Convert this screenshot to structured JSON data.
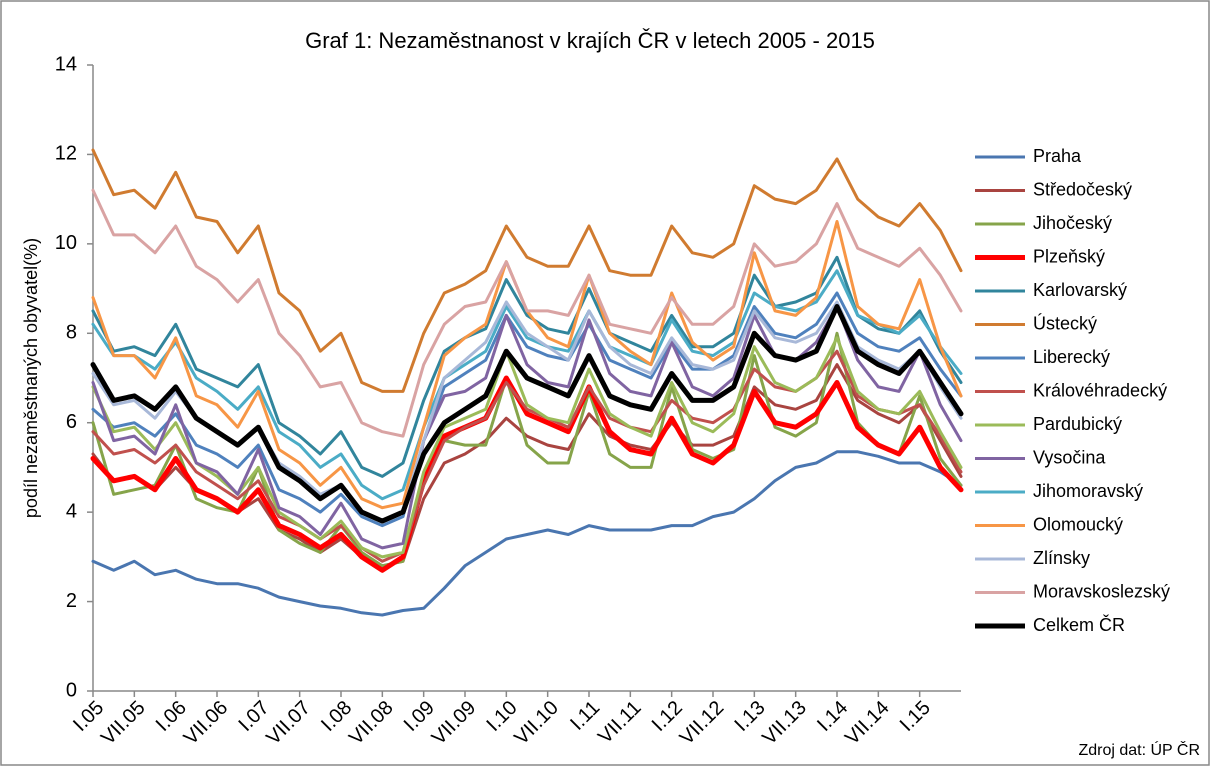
{
  "chart_data": {
    "type": "line",
    "title": "Graf 1: Nezaměstnanost v krajích ČR v letech 2005 - 2015",
    "ylabel": "podíl nezaměstnaných obyvatel(%)",
    "source": "Zdroj dat: ÚP ČR",
    "categories": [
      "I.05",
      null,
      "VII.05",
      null,
      "I.06",
      null,
      "VII.06",
      null,
      "I.07",
      null,
      "VII.07",
      null,
      "I.08",
      null,
      "VII.08",
      null,
      "I.09",
      null,
      "VII.09",
      null,
      "I.10",
      null,
      "VII.10",
      null,
      "I.11",
      null,
      "VII.11",
      null,
      "I.12",
      null,
      "VII.12",
      null,
      "I.13",
      null,
      "VII.13",
      null,
      "I.14",
      null,
      "VII.14",
      null,
      "I.15",
      null,
      null
    ],
    "ylim": [
      0,
      14
    ],
    "yticks": [
      0,
      2,
      4,
      6,
      8,
      10,
      12,
      14
    ],
    "grid": false,
    "series": [
      {
        "name": "Praha",
        "color": "#4a76b0",
        "linewidth": 3,
        "values": [
          2.9,
          2.7,
          2.9,
          2.6,
          2.7,
          2.5,
          2.4,
          2.4,
          2.3,
          2.1,
          2.0,
          1.9,
          1.85,
          1.75,
          1.7,
          1.8,
          1.85,
          2.3,
          2.8,
          3.1,
          3.4,
          3.5,
          3.6,
          3.5,
          3.7,
          3.6,
          3.6,
          3.6,
          3.7,
          3.7,
          3.9,
          4.0,
          4.3,
          4.7,
          5.0,
          5.1,
          5.35,
          5.35,
          5.25,
          5.1,
          5.1,
          4.9,
          4.6
        ]
      },
      {
        "name": "Středočeský",
        "color": "#a94440",
        "linewidth": 3,
        "values": [
          5.3,
          4.7,
          4.8,
          4.5,
          5.0,
          4.5,
          4.3,
          4.0,
          4.3,
          3.6,
          3.4,
          3.1,
          3.4,
          3.0,
          2.8,
          2.9,
          4.3,
          5.1,
          5.3,
          5.6,
          6.1,
          5.7,
          5.5,
          5.4,
          6.2,
          5.7,
          5.5,
          5.4,
          6.0,
          5.5,
          5.5,
          5.7,
          6.8,
          6.4,
          6.3,
          6.5,
          7.3,
          6.5,
          6.2,
          6.0,
          6.4,
          5.6,
          4.8
        ]
      },
      {
        "name": "Jihočeský",
        "color": "#86a44a",
        "linewidth": 3,
        "values": [
          6.0,
          4.4,
          4.5,
          4.6,
          5.5,
          4.3,
          4.1,
          4.0,
          5.0,
          3.6,
          3.3,
          3.1,
          3.7,
          3.1,
          2.8,
          2.9,
          4.8,
          5.6,
          5.5,
          5.5,
          7.0,
          5.5,
          5.1,
          5.1,
          6.7,
          5.3,
          5.0,
          5.0,
          6.8,
          5.4,
          5.2,
          5.4,
          7.5,
          5.9,
          5.7,
          6.0,
          8.0,
          6.0,
          5.5,
          5.3,
          6.6,
          5.2,
          4.6
        ]
      },
      {
        "name": "Plzeňský",
        "color": "#ff0000",
        "linewidth": 5,
        "values": [
          5.2,
          4.7,
          4.8,
          4.5,
          5.2,
          4.5,
          4.3,
          4.0,
          4.5,
          3.7,
          3.5,
          3.2,
          3.5,
          3.0,
          2.7,
          3.0,
          4.7,
          5.7,
          5.9,
          6.1,
          7.0,
          6.2,
          6.0,
          5.8,
          6.8,
          5.8,
          5.4,
          5.3,
          6.1,
          5.3,
          5.1,
          5.5,
          6.7,
          6.0,
          5.9,
          6.2,
          6.9,
          5.9,
          5.5,
          5.3,
          5.9,
          5.0,
          4.5
        ]
      },
      {
        "name": "Karlovarský",
        "color": "#31859c",
        "linewidth": 3,
        "values": [
          8.5,
          7.6,
          7.7,
          7.5,
          8.2,
          7.2,
          7.0,
          6.8,
          7.3,
          6.0,
          5.7,
          5.3,
          5.8,
          5.0,
          4.8,
          5.1,
          6.5,
          7.6,
          7.9,
          8.1,
          9.2,
          8.4,
          8.1,
          8.0,
          9.0,
          8.0,
          7.8,
          7.6,
          8.4,
          7.7,
          7.7,
          8.0,
          9.3,
          8.6,
          8.7,
          8.9,
          9.7,
          8.4,
          8.1,
          8.0,
          8.5,
          7.6,
          6.9
        ]
      },
      {
        "name": "Ústecký",
        "color": "#d07b30",
        "linewidth": 3,
        "values": [
          12.1,
          11.1,
          11.2,
          10.8,
          11.6,
          10.6,
          10.5,
          9.8,
          10.4,
          8.9,
          8.5,
          7.6,
          8.0,
          6.9,
          6.7,
          6.7,
          8.0,
          8.9,
          9.1,
          9.4,
          10.4,
          9.7,
          9.5,
          9.5,
          10.4,
          9.4,
          9.3,
          9.3,
          10.4,
          9.8,
          9.7,
          10.0,
          11.3,
          11.0,
          10.9,
          11.2,
          11.9,
          11.0,
          10.6,
          10.4,
          10.9,
          10.3,
          9.4
        ]
      },
      {
        "name": "Liberecký",
        "color": "#4f81bd",
        "linewidth": 3,
        "values": [
          6.3,
          5.9,
          6.0,
          5.7,
          6.2,
          5.5,
          5.3,
          5.0,
          5.5,
          4.5,
          4.3,
          4.0,
          4.4,
          3.9,
          3.7,
          3.9,
          5.6,
          6.8,
          7.1,
          7.4,
          8.4,
          7.7,
          7.5,
          7.4,
          8.2,
          7.4,
          7.2,
          7.0,
          7.8,
          7.2,
          7.2,
          7.5,
          8.6,
          8.0,
          7.9,
          8.2,
          8.9,
          8.0,
          7.7,
          7.6,
          7.9,
          7.2,
          6.6
        ]
      },
      {
        "name": "Královéhradecký",
        "color": "#c0504d",
        "linewidth": 3,
        "values": [
          5.8,
          5.3,
          5.4,
          5.1,
          5.5,
          4.9,
          4.6,
          4.3,
          4.7,
          3.9,
          3.7,
          3.4,
          3.7,
          3.2,
          2.9,
          3.1,
          4.6,
          5.6,
          5.9,
          6.1,
          6.9,
          6.3,
          6.1,
          5.9,
          6.8,
          6.1,
          5.9,
          5.8,
          6.5,
          6.1,
          6.0,
          6.3,
          7.2,
          6.8,
          6.7,
          7.0,
          7.6,
          6.6,
          6.3,
          6.2,
          6.4,
          5.7,
          4.9
        ]
      },
      {
        "name": "Pardubický",
        "color": "#9bbb59",
        "linewidth": 3,
        "values": [
          6.8,
          5.8,
          5.9,
          5.4,
          6.0,
          5.1,
          4.8,
          4.4,
          5.0,
          4.0,
          3.7,
          3.4,
          3.8,
          3.2,
          3.0,
          3.1,
          4.9,
          5.9,
          6.1,
          6.3,
          7.6,
          6.4,
          6.1,
          6.0,
          7.2,
          6.2,
          5.9,
          5.7,
          6.9,
          6.0,
          5.8,
          6.2,
          7.7,
          6.9,
          6.7,
          7.0,
          7.9,
          6.7,
          6.3,
          6.2,
          6.7,
          5.8,
          5.0
        ]
      },
      {
        "name": "Vysočina",
        "color": "#8064a2",
        "linewidth": 3,
        "values": [
          6.9,
          5.6,
          5.7,
          5.3,
          6.4,
          5.1,
          4.9,
          4.4,
          5.4,
          4.1,
          3.9,
          3.5,
          4.2,
          3.4,
          3.2,
          3.3,
          5.6,
          6.6,
          6.7,
          7.0,
          8.4,
          7.3,
          6.9,
          6.8,
          8.3,
          7.1,
          6.7,
          6.6,
          7.8,
          6.8,
          6.6,
          7.0,
          8.4,
          7.5,
          7.4,
          7.8,
          8.6,
          7.4,
          6.8,
          6.7,
          7.6,
          6.4,
          5.6
        ]
      },
      {
        "name": "Jihomoravský",
        "color": "#4bacc6",
        "linewidth": 3,
        "values": [
          8.2,
          7.5,
          7.5,
          7.2,
          7.8,
          7.0,
          6.7,
          6.3,
          6.8,
          5.8,
          5.5,
          5.0,
          5.3,
          4.6,
          4.3,
          4.5,
          5.9,
          7.0,
          7.3,
          7.6,
          8.6,
          7.9,
          7.7,
          7.6,
          8.5,
          7.7,
          7.5,
          7.3,
          8.3,
          7.6,
          7.5,
          7.8,
          8.9,
          8.6,
          8.5,
          8.7,
          9.4,
          8.4,
          8.2,
          8.0,
          8.4,
          7.7,
          7.1
        ]
      },
      {
        "name": "Olomoucký",
        "color": "#f79646",
        "linewidth": 3,
        "values": [
          8.8,
          7.5,
          7.5,
          7.0,
          7.9,
          6.6,
          6.4,
          5.9,
          6.7,
          5.4,
          5.1,
          4.6,
          5.0,
          4.3,
          4.1,
          4.2,
          5.9,
          7.5,
          7.9,
          8.2,
          9.6,
          8.5,
          7.9,
          7.7,
          9.3,
          8.0,
          7.6,
          7.3,
          8.9,
          7.8,
          7.4,
          7.7,
          9.8,
          8.5,
          8.4,
          8.8,
          10.5,
          8.6,
          8.2,
          8.1,
          9.2,
          7.7,
          6.6
        ]
      },
      {
        "name": "Zlínsky",
        "color": "#a8b8d8",
        "linewidth": 3,
        "values": [
          7.1,
          6.4,
          6.5,
          6.1,
          6.7,
          6.1,
          5.8,
          5.5,
          5.9,
          5.1,
          4.8,
          4.4,
          4.6,
          4.0,
          3.8,
          4.0,
          5.6,
          7.0,
          7.4,
          7.8,
          8.7,
          8.0,
          7.7,
          7.4,
          8.5,
          7.7,
          7.3,
          7.1,
          7.9,
          7.3,
          7.2,
          7.4,
          8.5,
          7.9,
          7.8,
          8.0,
          8.7,
          7.7,
          7.4,
          7.2,
          7.6,
          6.8,
          6.1
        ]
      },
      {
        "name": "Moravskoslezský",
        "color": "#d9a3a3",
        "linewidth": 3,
        "values": [
          11.2,
          10.2,
          10.2,
          9.8,
          10.4,
          9.5,
          9.2,
          8.7,
          9.2,
          8.0,
          7.5,
          6.8,
          6.9,
          6.0,
          5.8,
          5.7,
          7.3,
          8.2,
          8.6,
          8.7,
          9.6,
          8.5,
          8.5,
          8.4,
          9.3,
          8.2,
          8.1,
          8.0,
          8.8,
          8.2,
          8.2,
          8.6,
          10.0,
          9.5,
          9.6,
          10.0,
          10.9,
          9.9,
          9.7,
          9.5,
          9.9,
          9.3,
          8.5
        ]
      },
      {
        "name": "Celkem ČR",
        "color": "#000000",
        "linewidth": 5,
        "values": [
          7.3,
          6.5,
          6.6,
          6.3,
          6.8,
          6.1,
          5.8,
          5.5,
          5.9,
          5.0,
          4.7,
          4.3,
          4.6,
          4.0,
          3.8,
          4.0,
          5.3,
          6.0,
          6.3,
          6.6,
          7.6,
          7.0,
          6.8,
          6.6,
          7.5,
          6.6,
          6.4,
          6.3,
          7.1,
          6.5,
          6.5,
          6.8,
          8.0,
          7.5,
          7.4,
          7.6,
          8.6,
          7.6,
          7.3,
          7.1,
          7.6,
          6.9,
          6.2
        ]
      }
    ]
  }
}
